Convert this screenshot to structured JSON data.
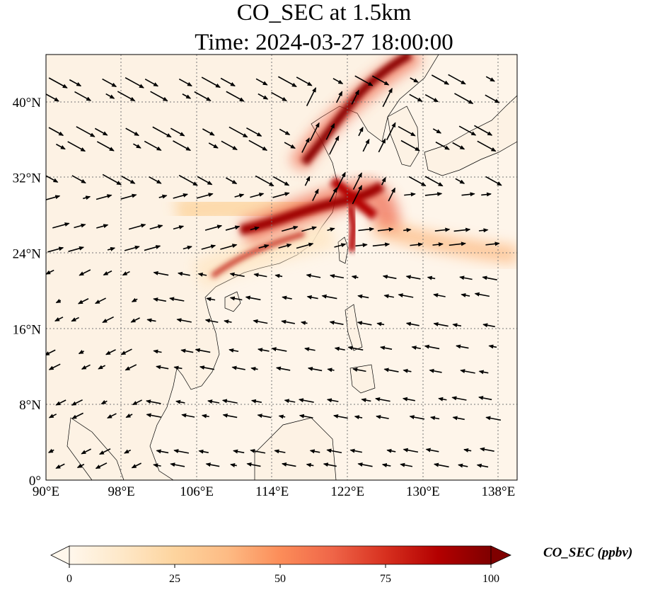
{
  "title_line1": "CO_SEC at 1.5km",
  "title_line2": "Time: 2024-03-27 18:00:00",
  "map": {
    "lon_range": [
      90,
      140
    ],
    "lat_range": [
      0,
      45
    ],
    "gridlines": true,
    "gridline_style": "dotted",
    "lon_ticks": [
      {
        "value": 90,
        "label": "90°E"
      },
      {
        "value": 98,
        "label": "98°E"
      },
      {
        "value": 106,
        "label": "106°E"
      },
      {
        "value": 114,
        "label": "114°E"
      },
      {
        "value": 122,
        "label": "122°E"
      },
      {
        "value": 130,
        "label": "130°E"
      },
      {
        "value": 138,
        "label": "138°E"
      }
    ],
    "lat_ticks": [
      {
        "value": 0,
        "label": "0°"
      },
      {
        "value": 8,
        "label": "8°N"
      },
      {
        "value": 16,
        "label": "16°N"
      },
      {
        "value": 24,
        "label": "24°N"
      },
      {
        "value": 32,
        "label": "32°N"
      },
      {
        "value": 40,
        "label": "40°N"
      }
    ],
    "land_fill": "#fdf3e6",
    "ocean_fill": "#fef5ea",
    "coastline_color": "#000000",
    "wind_vectors": "black arrows"
  },
  "colorbar": {
    "label": "CO_SEC (ppbv)",
    "min": 0,
    "max": 100,
    "extend": "both",
    "colormap": "OrRd",
    "colors": [
      "#fff7ec",
      "#fee8c8",
      "#fdd49e",
      "#fdbb84",
      "#fc8d59",
      "#ef6548",
      "#d7301f",
      "#b30000",
      "#7f0000"
    ],
    "ticks": [
      {
        "value": 0,
        "label": "0"
      },
      {
        "value": 25,
        "label": "25"
      },
      {
        "value": 50,
        "label": "50"
      },
      {
        "value": 75,
        "label": "75"
      },
      {
        "value": 100,
        "label": "100"
      }
    ]
  },
  "plumes": [
    {
      "name": "northern plume",
      "lon": [
        117.5,
        122.5,
        126.5
      ],
      "lat": [
        33,
        39.5,
        44.5
      ],
      "peak_ppbv": 100
    },
    {
      "name": "central plume",
      "lon": [
        110.5,
        116,
        121,
        124
      ],
      "lat": [
        26.5,
        27.5,
        29,
        30
      ],
      "peak_ppbv": 100
    },
    {
      "name": "eastern outflow",
      "lon": [
        124,
        130,
        136,
        140
      ],
      "lat": [
        28,
        26,
        24.5,
        23.5
      ],
      "peak_ppbv": 30
    }
  ]
}
